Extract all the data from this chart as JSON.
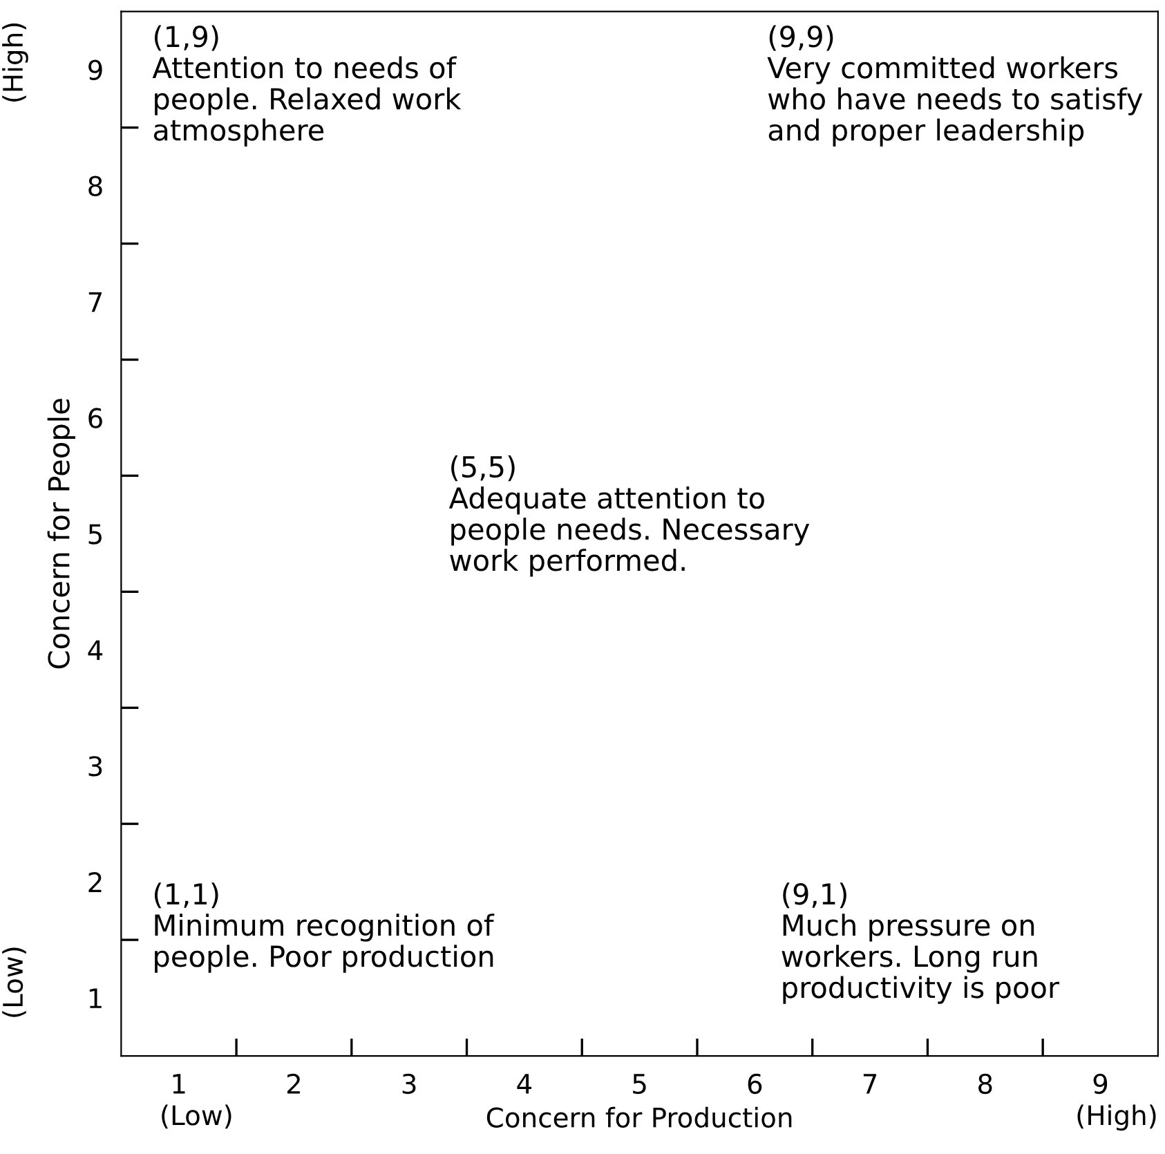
{
  "chart_data": {
    "type": "scatter",
    "xlabel": "Concern for Production",
    "ylabel": "Concern for People",
    "xlim": [
      0.5,
      9.5
    ],
    "ylim": [
      0.5,
      9.5
    ],
    "xticks": [
      1,
      {
        "value": 1.5,
        "label": null
      },
      2,
      {
        "value": 2.5,
        "label": null
      },
      3,
      {
        "value": 3.5,
        "label": null
      },
      4,
      {
        "value": 4.5,
        "label": null
      },
      5,
      {
        "value": 5.5,
        "label": null
      },
      6,
      {
        "value": 6.5,
        "label": null
      },
      7,
      {
        "value": 7.5,
        "label": null
      },
      8,
      {
        "value": 8.5,
        "label": null
      },
      9
    ],
    "yticks": [
      1,
      {
        "value": 1.5,
        "label": null
      },
      2,
      {
        "value": 2.5,
        "label": null
      },
      3,
      {
        "value": 3.5,
        "label": null
      },
      4,
      {
        "value": 4.5,
        "label": null
      },
      5,
      {
        "value": 5.5,
        "label": null
      },
      6,
      {
        "value": 6.5,
        "label": null
      },
      7,
      {
        "value": 7.5,
        "label": null
      },
      8,
      {
        "value": 8.5,
        "label": null
      },
      9
    ],
    "annotations": [
      "(1,9)\nAttention to needs of\npeople. Relaxed work\natmosphere",
      "(9,9)\nVery committed workers\nwho have needs to satisfy\nand proper leadership",
      "(5,5)\nAdequate attention to\npeople needs. Necessary\nwork performed.",
      "(1,1)\nMinimum recognition of\npeople. Poor production",
      "(9,1)\nMuch pressure on\nworkers. Long run\nproductivity is poor",
      "(Low)",
      "(High)",
      "(Low)",
      "(High)"
    ]
  }
}
